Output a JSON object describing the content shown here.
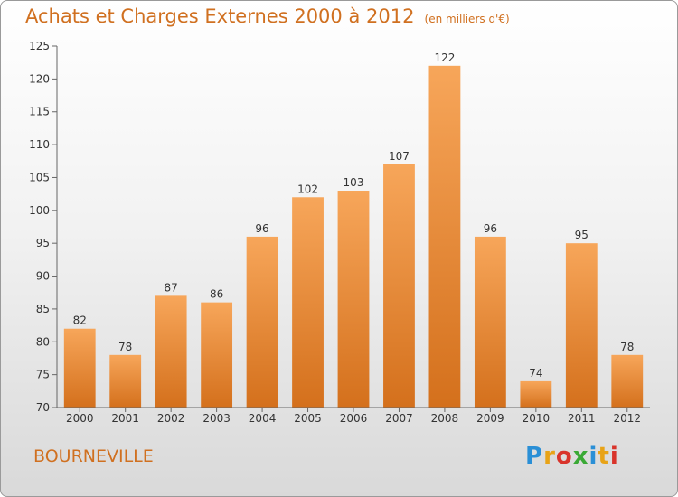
{
  "title": "Achats et Charges Externes 2000 à 2012",
  "unit": "(en milliers d'€)",
  "commune": "BOURNEVILLE",
  "logo": {
    "text": "Proxiti",
    "letter_colors": [
      "#2a8fd6",
      "#e8a317",
      "#d9342b",
      "#3aa935",
      "#2a8fd6",
      "#e8a317",
      "#d9342b"
    ]
  },
  "chart_data": {
    "type": "bar",
    "categories": [
      "2000",
      "2001",
      "2002",
      "2003",
      "2004",
      "2005",
      "2006",
      "2007",
      "2008",
      "2009",
      "2010",
      "2011",
      "2012"
    ],
    "values": [
      82,
      78,
      87,
      86,
      96,
      102,
      103,
      107,
      122,
      96,
      74,
      95,
      78
    ],
    "ylim": [
      70,
      125
    ],
    "yticks": [
      70,
      75,
      80,
      85,
      90,
      95,
      100,
      105,
      110,
      115,
      120,
      125
    ],
    "grid": false,
    "bar_color_top": "#f7a65a",
    "bar_color_bottom": "#d4701c"
  }
}
